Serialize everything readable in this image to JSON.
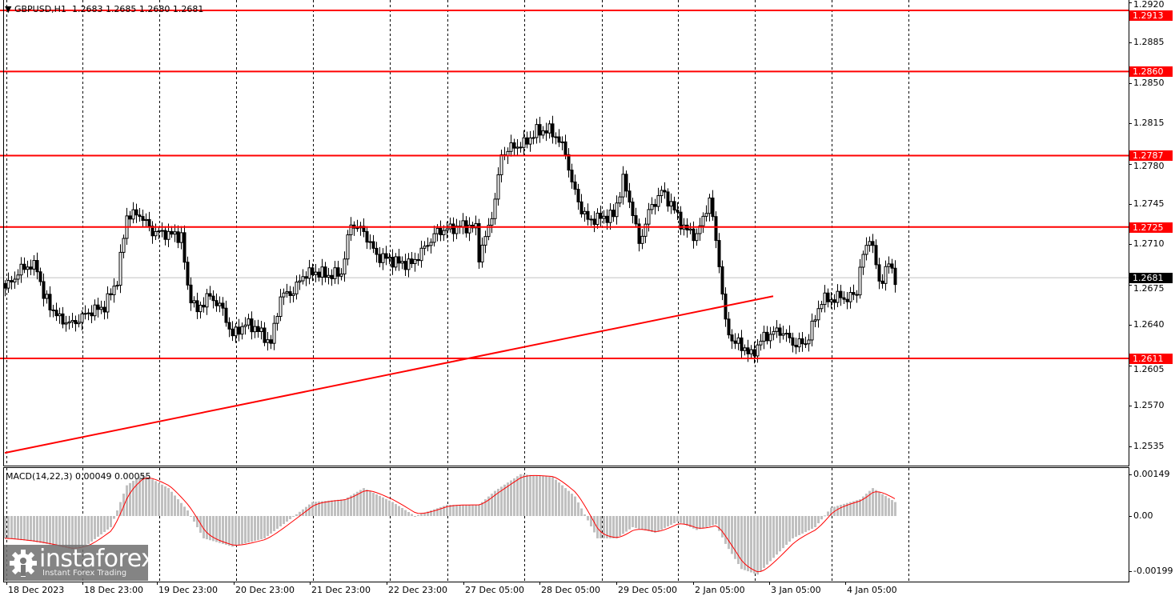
{
  "header": {
    "symbol": "GBPUSD,H1",
    "ohlc": "1.2683 1.2685 1.2680 1.2681"
  },
  "macd_title": "MACD(14,22,3) 0.00049 0.00055",
  "logo": {
    "brand": "instaforex",
    "tagline": "Instant Forex Trading"
  },
  "colors": {
    "level_line": "#ff0000",
    "bull_body": "#ffffff",
    "bear_body": "#000000",
    "histogram": "#c0c0c0",
    "signal": "#ff0000",
    "current_price_line": "#c0c0c0"
  },
  "chart_data": [
    {
      "type": "candlestick",
      "symbol": "GBPUSD",
      "timeframe": "H1",
      "ylim": [
        1.2518,
        1.2922
      ],
      "y_ticks": [
        "1.2920",
        "1.2885",
        "1.2850",
        "1.2815",
        "1.2780",
        "1.2745",
        "1.2710",
        "1.2675",
        "1.2640",
        "1.2605",
        "1.2570",
        "1.2535"
      ],
      "horizontal_levels": [
        "1.2913",
        "1.2860",
        "1.2787",
        "1.2725",
        "1.2611"
      ],
      "current_price": "1.2681",
      "trendline": {
        "start": [
          0,
          1.2529
        ],
        "end": [
          240,
          1.2665
        ]
      },
      "time_labels": [
        "18 Dec 2023",
        "18 Dec 23:00",
        "19 Dec 23:00",
        "20 Dec 23:00",
        "21 Dec 23:00",
        "22 Dec 23:00",
        "27 Dec 05:00",
        "28 Dec 05:00",
        "29 Dec 05:00",
        "2 Jan 05:00",
        "3 Jan 05:00",
        "4 Jan 05:00"
      ],
      "close_path_by_bar": [
        [
          0,
          1.2672
        ],
        [
          6,
          1.2691
        ],
        [
          10,
          1.269
        ],
        [
          12,
          1.2665
        ],
        [
          17,
          1.2645
        ],
        [
          21,
          1.2641
        ],
        [
          26,
          1.2651
        ],
        [
          31,
          1.2656
        ],
        [
          35,
          1.2679
        ],
        [
          38,
          1.2735
        ],
        [
          42,
          1.2736
        ],
        [
          46,
          1.2721
        ],
        [
          51,
          1.2719
        ],
        [
          55,
          1.2717
        ],
        [
          57,
          1.2672
        ],
        [
          60,
          1.2651
        ],
        [
          63,
          1.2665
        ],
        [
          67,
          1.2658
        ],
        [
          71,
          1.2631
        ],
        [
          75,
          1.2641
        ],
        [
          78,
          1.2638
        ],
        [
          83,
          1.2624
        ],
        [
          86,
          1.2665
        ],
        [
          90,
          1.2669
        ],
        [
          93,
          1.2683
        ],
        [
          97,
          1.2686
        ],
        [
          101,
          1.2683
        ],
        [
          105,
          1.2685
        ],
        [
          108,
          1.2728
        ],
        [
          112,
          1.2721
        ],
        [
          116,
          1.27
        ],
        [
          120,
          1.2697
        ],
        [
          123,
          1.2694
        ],
        [
          127,
          1.2693
        ],
        [
          131,
          1.2707
        ],
        [
          135,
          1.2721
        ],
        [
          138,
          1.2723
        ],
        [
          143,
          1.2726
        ],
        [
          147,
          1.2724
        ],
        [
          148,
          1.27
        ],
        [
          151,
          1.2724
        ],
        [
          153,
          1.2749
        ],
        [
          155,
          1.2787
        ],
        [
          158,
          1.2794
        ],
        [
          162,
          1.2797
        ],
        [
          166,
          1.2808
        ],
        [
          170,
          1.2809
        ],
        [
          172,
          1.2804
        ],
        [
          175,
          1.279
        ],
        [
          177,
          1.2763
        ],
        [
          180,
          1.274
        ],
        [
          182,
          1.2731
        ],
        [
          186,
          1.2733
        ],
        [
          190,
          1.2735
        ],
        [
          193,
          1.2766
        ],
        [
          196,
          1.2738
        ],
        [
          198,
          1.271
        ],
        [
          201,
          1.2738
        ],
        [
          205,
          1.2756
        ],
        [
          208,
          1.2745
        ],
        [
          212,
          1.2724
        ],
        [
          216,
          1.2717
        ],
        [
          218,
          1.2733
        ],
        [
          220,
          1.2749
        ],
        [
          222,
          1.2714
        ],
        [
          223,
          1.2693
        ],
        [
          225,
          1.2641
        ],
        [
          227,
          1.2627
        ],
        [
          231,
          1.262
        ],
        [
          233,
          1.2613
        ],
        [
          236,
          1.2627
        ],
        [
          240,
          1.2634
        ],
        [
          243,
          1.2634
        ],
        [
          246,
          1.2624
        ],
        [
          250,
          1.2624
        ],
        [
          252,
          1.2638
        ],
        [
          255,
          1.2662
        ],
        [
          258,
          1.2662
        ],
        [
          261,
          1.2665
        ],
        [
          263,
          1.2662
        ],
        [
          266,
          1.2669
        ],
        [
          267,
          1.269
        ],
        [
          270,
          1.2717
        ],
        [
          271,
          1.2707
        ],
        [
          273,
          1.2676
        ],
        [
          276,
          1.2693
        ],
        [
          278,
          1.2681
        ]
      ]
    },
    {
      "type": "bar",
      "indicator": "MACD(14,22,3)",
      "ylim": [
        -0.00235,
        0.00172
      ],
      "y_ticks": [
        "0.00149",
        "0.00",
        "-0.00199"
      ],
      "macd_value": "0.00049",
      "signal_value": "0.00055",
      "histogram_path_by_bar": [
        [
          0,
          -0.0008
        ],
        [
          8,
          -0.0009
        ],
        [
          13,
          -0.001
        ],
        [
          21,
          -0.0012
        ],
        [
          26,
          -0.001
        ],
        [
          33,
          -0.0004
        ],
        [
          38,
          0.0011
        ],
        [
          43,
          0.0015
        ],
        [
          51,
          0.001
        ],
        [
          57,
          0.0002
        ],
        [
          62,
          -0.0008
        ],
        [
          71,
          -0.0011
        ],
        [
          81,
          -0.0008
        ],
        [
          88,
          -0.0002
        ],
        [
          96,
          0.0005
        ],
        [
          106,
          0.0006
        ],
        [
          112,
          0.001
        ],
        [
          121,
          0.0005
        ],
        [
          128,
          0.0
        ],
        [
          138,
          0.0004
        ],
        [
          148,
          0.0004
        ],
        [
          153,
          0.0009
        ],
        [
          161,
          0.0015
        ],
        [
          171,
          0.0014
        ],
        [
          178,
          0.0007
        ],
        [
          185,
          -0.0008
        ],
        [
          191,
          -0.0008
        ],
        [
          196,
          -0.0004
        ],
        [
          203,
          -0.0006
        ],
        [
          210,
          -0.0002
        ],
        [
          216,
          -0.0005
        ],
        [
          222,
          -0.0003
        ],
        [
          225,
          -0.001
        ],
        [
          230,
          -0.0019
        ],
        [
          235,
          -0.0021
        ],
        [
          240,
          -0.0015
        ],
        [
          246,
          -0.0008
        ],
        [
          253,
          -0.0004
        ],
        [
          258,
          0.0003
        ],
        [
          267,
          0.0006
        ],
        [
          271,
          0.001
        ],
        [
          278,
          0.0005
        ]
      ]
    }
  ]
}
